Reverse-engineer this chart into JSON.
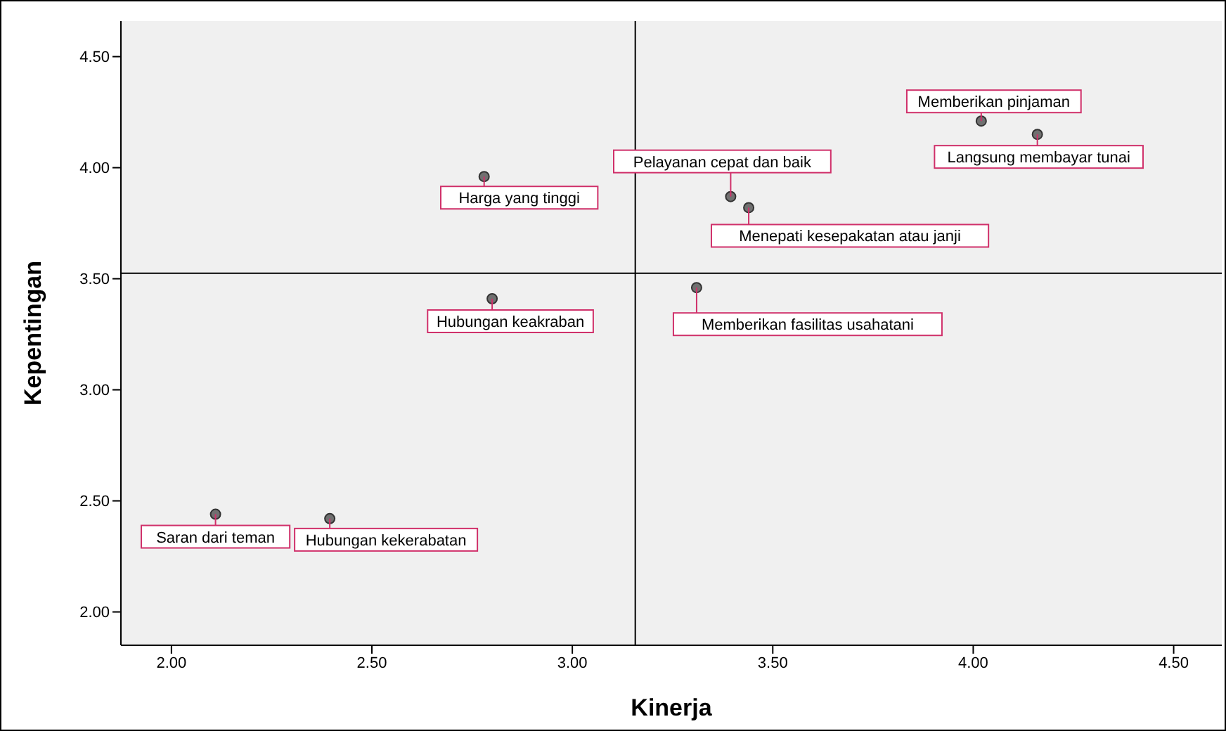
{
  "chart_data": {
    "type": "scatter",
    "xlabel": "Kinerja",
    "ylabel": "Kepentingan",
    "x": [
      2.11,
      2.395,
      2.78,
      2.8,
      3.395,
      3.44,
      3.31,
      4.02,
      4.16
    ],
    "series": [
      {
        "color": "#707070",
        "values": [
          2.44,
          2.42,
          3.96,
          3.41,
          3.87,
          3.82,
          3.46,
          4.21,
          4.15
        ]
      }
    ],
    "marker": "circle",
    "xlim": [
      1.874,
      4.62
    ],
    "ylim": [
      1.85,
      4.66
    ],
    "xticks": [
      {
        "value": 2,
        "label": "2.00"
      },
      {
        "value": 2.5,
        "label": "2.50"
      },
      {
        "value": 3,
        "label": "3.00"
      },
      {
        "value": 3.5,
        "label": "3.50"
      },
      {
        "value": 4,
        "label": "4.00"
      },
      {
        "value": 4.5,
        "label": "4.50"
      }
    ],
    "yticks": [
      {
        "value": 2,
        "label": "2.00"
      },
      {
        "value": 2.5,
        "label": "2.50"
      },
      {
        "value": 3,
        "label": "3.00"
      },
      {
        "value": 3.5,
        "label": "3.50"
      },
      {
        "value": 4,
        "label": "4.00"
      },
      {
        "value": 4.5,
        "label": "4.50"
      }
    ],
    "ref_lines": [
      {
        "axis": "x",
        "value": 3.157,
        "color": "#000000"
      },
      {
        "axis": "y",
        "value": 3.525,
        "color": "#000000"
      }
    ],
    "annotations": [
      {
        "text": "Saran dari teman",
        "x": 2.11,
        "y": 2.44
      },
      {
        "text": "Hubungan kekerabatan",
        "x": 2.395,
        "y": 2.42
      },
      {
        "text": "Harga yang tinggi",
        "x": 2.78,
        "y": 3.96
      },
      {
        "text": "Hubungan keakraban",
        "x": 2.8,
        "y": 3.41
      },
      {
        "text": "Pelayanan cepat dan baik",
        "x": 3.395,
        "y": 3.87
      },
      {
        "text": "Menepati kesepakatan atau janji",
        "x": 3.44,
        "y": 3.82
      },
      {
        "text": "Memberikan fasilitas usahatani",
        "x": 3.31,
        "y": 3.46
      },
      {
        "text": "Memberikan pinjaman",
        "x": 4.02,
        "y": 4.21
      },
      {
        "text": "Langsung membayar tunai",
        "x": 4.16,
        "y": 4.15
      }
    ],
    "grid": false,
    "legend": false
  }
}
